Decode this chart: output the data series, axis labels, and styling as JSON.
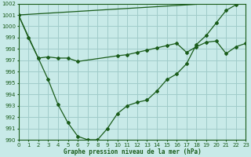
{
  "title": "Graphe pression niveau de la mer (hPa)",
  "bg_color": "#c8eae8",
  "grid_color": "#a0ccca",
  "line_color": "#1a5c1a",
  "xlim": [
    0,
    23
  ],
  "ylim": [
    990,
    1002
  ],
  "ytick_vals": [
    990,
    991,
    992,
    993,
    994,
    995,
    996,
    997,
    998,
    999,
    1000,
    1001,
    1002
  ],
  "xtick_vals": [
    0,
    1,
    2,
    3,
    4,
    5,
    6,
    7,
    8,
    9,
    10,
    11,
    12,
    13,
    14,
    15,
    16,
    17,
    18,
    19,
    20,
    21,
    22,
    23
  ],
  "curve1_x": [
    0,
    1,
    2,
    3,
    4,
    5,
    6,
    7,
    8,
    9,
    10,
    11,
    12,
    13,
    14,
    15,
    16,
    17,
    18,
    19,
    20,
    21,
    22,
    23
  ],
  "curve1_y": [
    1001.0,
    999.0,
    997.2,
    995.3,
    993.1,
    991.5,
    990.3,
    990.0,
    990.0,
    991.0,
    992.3,
    993.0,
    993.3,
    993.5,
    994.3,
    995.3,
    995.8,
    996.7,
    998.4,
    999.2,
    1000.3,
    1001.4,
    1001.9,
    1002.2
  ],
  "curve2_x": [
    0,
    2,
    3,
    4,
    5,
    6,
    10,
    11,
    12,
    13,
    14,
    15,
    16,
    17,
    18,
    19,
    20,
    21,
    22,
    23
  ],
  "curve2_y": [
    1001.0,
    997.2,
    997.3,
    997.2,
    997.2,
    996.9,
    997.4,
    997.5,
    997.7,
    997.9,
    998.1,
    998.3,
    998.5,
    997.7,
    998.2,
    998.6,
    998.7,
    997.6,
    998.2,
    998.5
  ],
  "line3_x": [
    0,
    23
  ],
  "line3_y": [
    1001.0,
    1002.2
  ]
}
